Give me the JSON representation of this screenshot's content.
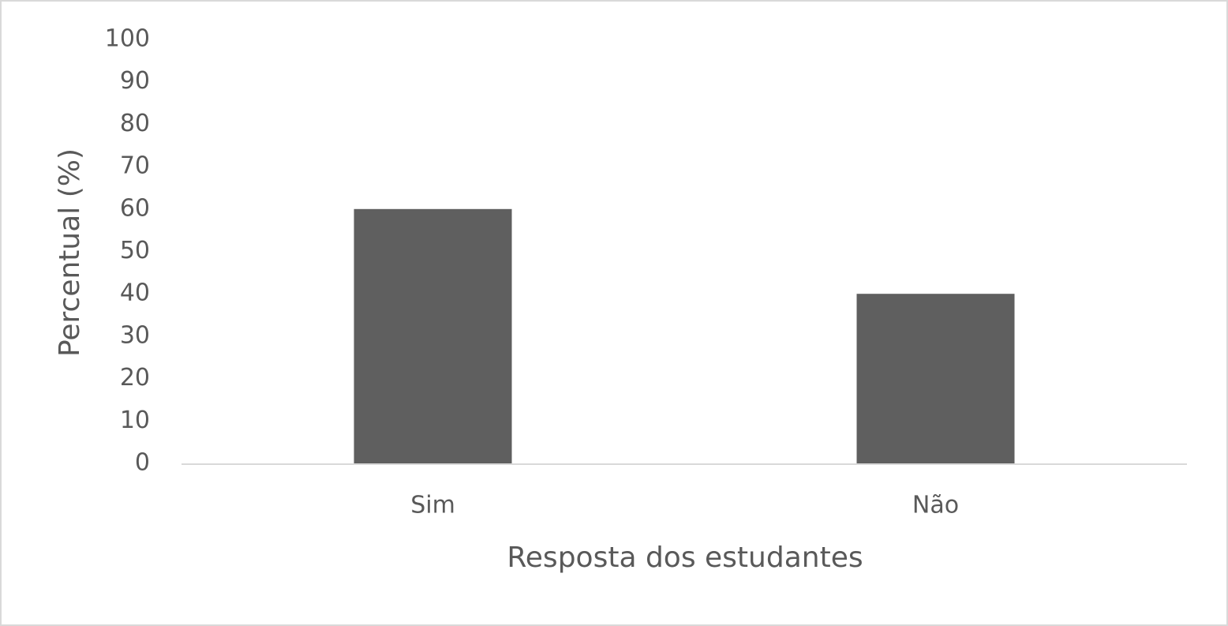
{
  "chart_data": {
    "type": "bar",
    "x_label": "Resposta dos estudantes",
    "y_label": "Percentual (%)",
    "categories": [
      "Sim",
      "Não"
    ],
    "values": [
      60,
      40
    ],
    "color": "#5f5f5f",
    "ylim": [
      0,
      100
    ],
    "yticks": [
      0,
      10,
      20,
      30,
      40,
      50,
      60,
      70,
      80,
      90,
      100
    ],
    "grid": false
  }
}
